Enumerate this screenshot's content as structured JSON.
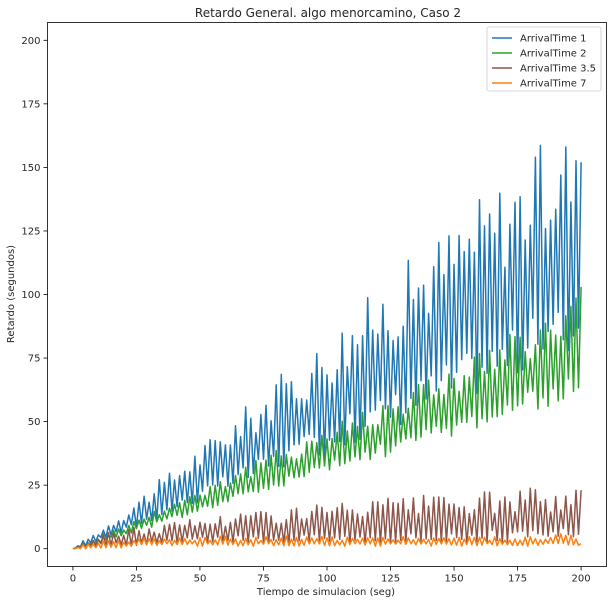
{
  "chart_data": {
    "type": "line",
    "title": "Retardo General. algo menorcamino, Caso 2",
    "xlabel": "Tiempo de simulacion (seg)",
    "ylabel": "Retardo (segundos)",
    "xlim": [
      -10,
      210
    ],
    "ylim": [
      -7,
      207
    ],
    "xticks": [
      0,
      25,
      50,
      75,
      100,
      125,
      150,
      175,
      200
    ],
    "yticks": [
      0,
      25,
      50,
      75,
      100,
      125,
      150,
      175,
      200
    ],
    "grid": false,
    "legend_position": "top-right",
    "series": [
      {
        "name": "ArrivalTime 1",
        "color": "#1f77b4",
        "x": [
          0,
          5,
          10,
          15,
          20,
          25,
          30,
          35,
          40,
          45,
          50,
          55,
          60,
          65,
          70,
          75,
          80,
          85,
          90,
          95,
          100,
          105,
          110,
          115,
          120,
          125,
          130,
          135,
          140,
          145,
          150,
          155,
          160,
          165,
          170,
          175,
          180,
          185,
          190,
          195,
          200
        ],
        "upper": [
          0,
          4,
          7,
          11,
          15,
          20,
          24,
          28,
          32,
          37,
          41,
          45,
          50,
          54,
          58,
          63,
          67,
          72,
          76,
          80,
          85,
          90,
          94,
          99,
          103,
          108,
          112,
          117,
          121,
          126,
          130,
          135,
          140,
          143,
          148,
          152,
          156,
          160,
          164,
          168,
          152
        ],
        "lower": [
          0,
          1,
          3,
          5,
          6,
          8,
          10,
          12,
          14,
          16,
          18,
          20,
          22,
          24,
          26,
          28,
          30,
          32,
          33,
          35,
          37,
          39,
          41,
          43,
          45,
          47,
          49,
          51,
          53,
          55,
          57,
          59,
          61,
          63,
          65,
          67,
          69,
          71,
          73,
          75,
          77
        ]
      },
      {
        "name": "ArrivalTime 2",
        "color": "#2ca02c",
        "x": [
          0,
          5,
          10,
          15,
          20,
          25,
          30,
          35,
          40,
          45,
          50,
          55,
          60,
          65,
          70,
          75,
          80,
          85,
          90,
          95,
          100,
          105,
          110,
          115,
          120,
          125,
          130,
          135,
          140,
          145,
          150,
          155,
          160,
          165,
          170,
          175,
          180,
          185,
          190,
          195,
          200
        ],
        "upper": [
          0,
          2,
          4,
          7,
          9,
          12,
          14,
          17,
          19,
          22,
          24,
          27,
          29,
          32,
          34,
          37,
          39,
          42,
          44,
          47,
          49,
          51,
          54,
          56,
          59,
          61,
          64,
          66,
          69,
          71,
          74,
          76,
          79,
          81,
          84,
          86,
          89,
          91,
          94,
          99,
          103
        ],
        "lower": [
          0,
          1,
          2,
          4,
          5,
          7,
          8,
          10,
          11,
          13,
          14,
          16,
          17,
          19,
          20,
          22,
          23,
          25,
          26,
          28,
          29,
          31,
          32,
          34,
          35,
          37,
          38,
          40,
          41,
          43,
          44,
          46,
          47,
          49,
          50,
          52,
          53,
          55,
          56,
          58,
          56
        ]
      },
      {
        "name": "ArrivalTime 3.5",
        "color": "#8c564b",
        "x": [
          0,
          5,
          10,
          15,
          20,
          25,
          30,
          35,
          40,
          45,
          50,
          55,
          60,
          65,
          70,
          75,
          80,
          85,
          90,
          95,
          100,
          105,
          110,
          115,
          120,
          125,
          130,
          135,
          140,
          145,
          150,
          155,
          160,
          165,
          170,
          175,
          180,
          185,
          190,
          195,
          200
        ],
        "upper": [
          0,
          3,
          5,
          7,
          8,
          9,
          9,
          10,
          11,
          12,
          13,
          13,
          14,
          15,
          15,
          16,
          16,
          17,
          17,
          18,
          18,
          18,
          19,
          19,
          20,
          20,
          20,
          21,
          21,
          21,
          22,
          22,
          22,
          23,
          23,
          23,
          24,
          24,
          25,
          26,
          23
        ],
        "lower": [
          0,
          0,
          1,
          1,
          1,
          1,
          1,
          1,
          2,
          2,
          2,
          2,
          2,
          2,
          2,
          2,
          2,
          2,
          2,
          2,
          2,
          2,
          2,
          2,
          2,
          2,
          2,
          2,
          2,
          2,
          2,
          2,
          2,
          2,
          2,
          2,
          2,
          2,
          2,
          2,
          2
        ]
      },
      {
        "name": "ArrivalTime 7",
        "color": "#ff7f0e",
        "x": [
          0,
          5,
          10,
          15,
          20,
          25,
          30,
          35,
          40,
          45,
          50,
          55,
          60,
          65,
          70,
          75,
          80,
          85,
          90,
          95,
          100,
          105,
          110,
          115,
          120,
          125,
          130,
          135,
          140,
          145,
          150,
          155,
          160,
          165,
          170,
          175,
          180,
          185,
          190,
          195,
          200
        ],
        "upper": [
          0,
          2,
          3,
          4,
          4,
          5,
          4,
          5,
          5,
          5,
          5,
          5,
          5,
          5,
          5,
          5,
          5,
          5,
          5,
          5,
          5,
          5,
          5,
          5,
          5,
          5,
          5,
          5,
          5,
          5,
          5,
          5,
          5,
          5,
          5,
          5,
          5,
          5,
          6,
          7,
          2
        ],
        "lower": [
          0,
          0,
          0,
          0,
          0,
          1,
          1,
          1,
          1,
          1,
          1,
          1,
          1,
          1,
          1,
          1,
          1,
          1,
          1,
          1,
          1,
          1,
          1,
          1,
          1,
          1,
          1,
          1,
          1,
          1,
          1,
          1,
          1,
          1,
          1,
          1,
          1,
          1,
          1,
          1,
          1
        ]
      }
    ]
  }
}
